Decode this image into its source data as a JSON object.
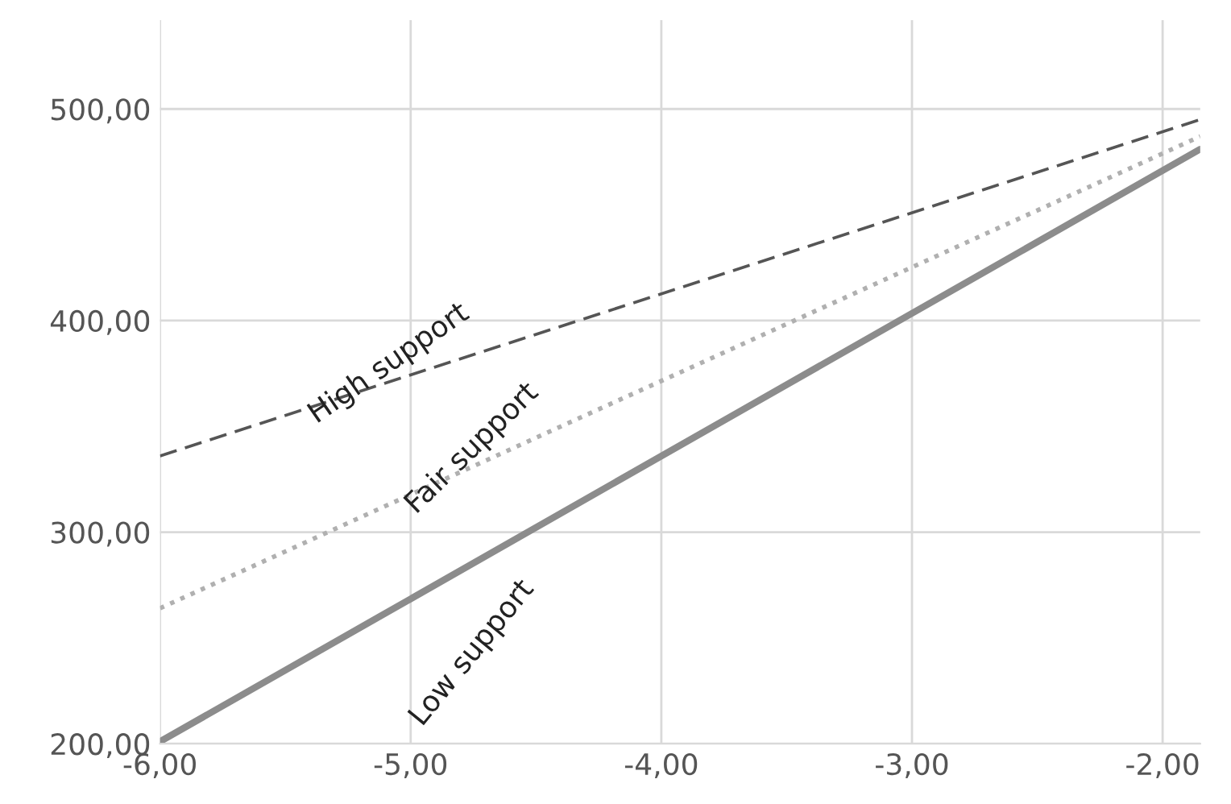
{
  "chart_data": {
    "type": "line",
    "x": [
      -6,
      -1.85
    ],
    "series": [
      {
        "name": "High support",
        "color": "#555555",
        "line_style": "dashed",
        "values": [
          336,
          495
        ]
      },
      {
        "name": "Fair support",
        "color": "#b0b0b0",
        "line_style": "dotted",
        "values": [
          264,
          487
        ]
      },
      {
        "name": "Low support",
        "color": "#8c8c8c",
        "line_style": "solid",
        "values": [
          201,
          481
        ]
      }
    ],
    "xlim": [
      -6,
      -1.85
    ],
    "ylim": [
      200,
      542
    ],
    "xticks": [
      {
        "value": -6,
        "label": "-6,00"
      },
      {
        "value": -5,
        "label": "-5,00"
      },
      {
        "value": -4,
        "label": "-4,00"
      },
      {
        "value": -3,
        "label": "-3,00"
      },
      {
        "value": -2,
        "label": "-2,00"
      }
    ],
    "yticks": [
      {
        "value": 200,
        "label": "200,00"
      },
      {
        "value": 300,
        "label": "300,00"
      },
      {
        "value": 400,
        "label": "400,00"
      },
      {
        "value": 500,
        "label": "500,00"
      }
    ],
    "grid": true,
    "legend": false
  }
}
